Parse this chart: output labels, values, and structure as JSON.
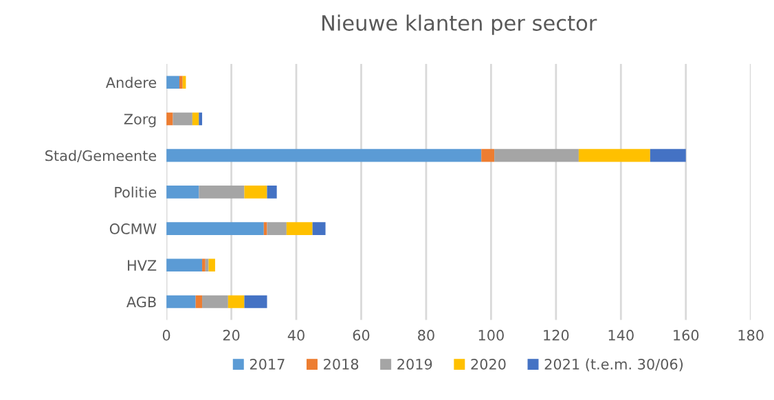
{
  "chart_data": {
    "type": "bar",
    "orientation": "horizontal",
    "stacked": true,
    "title": "Nieuwe klanten per sector",
    "categories": [
      "Andere",
      "Zorg",
      "Stad/Gemeente",
      "Politie",
      "OCMW",
      "HVZ",
      "AGB"
    ],
    "series": [
      {
        "name": "2017",
        "color": "#5b9bd5",
        "values": [
          4,
          0,
          97,
          10,
          30,
          11,
          9
        ]
      },
      {
        "name": "2018",
        "color": "#ed7d31",
        "values": [
          1,
          2,
          4,
          0,
          1,
          1,
          2
        ]
      },
      {
        "name": "2019",
        "color": "#a5a5a5",
        "values": [
          0,
          6,
          26,
          14,
          6,
          1,
          8
        ]
      },
      {
        "name": "2020",
        "color": "#ffc000",
        "values": [
          1,
          2,
          22,
          7,
          8,
          2,
          5
        ]
      },
      {
        "name": "2021 (t.e.m. 30/06)",
        "color": "#4472c4",
        "values": [
          0,
          1,
          11,
          3,
          4,
          0,
          7
        ]
      }
    ],
    "xlim": [
      0,
      180
    ],
    "xticks": [
      0,
      20,
      40,
      60,
      80,
      100,
      120,
      140,
      160,
      180
    ],
    "grid": "x",
    "legend": "bottom"
  }
}
